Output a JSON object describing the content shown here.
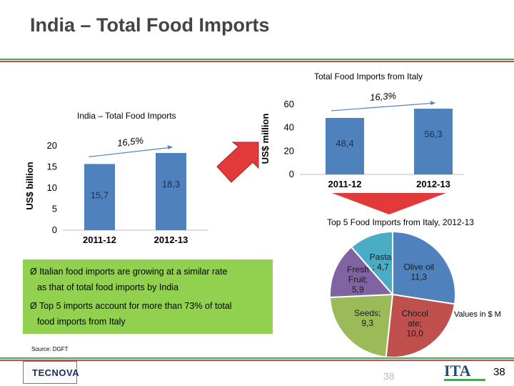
{
  "title": "India – Total Food Imports",
  "colors": {
    "bar": "#4f81bd",
    "green": "#4aa657",
    "red": "#c0504d",
    "bullet_box": "#92d050",
    "arrow": "#e23a3a"
  },
  "chart_data": [
    {
      "type": "bar",
      "title": "India – Total Food Imports",
      "ylabel": "US$ billion",
      "categories": [
        "2011-12",
        "2012-13"
      ],
      "values": [
        15.7,
        18.3
      ],
      "value_labels": [
        "15,7",
        "18,3"
      ],
      "ylim": [
        0,
        20
      ],
      "yticks": [
        "0",
        "5",
        "10",
        "15",
        "20"
      ],
      "growth_label": "16,5%",
      "grid": false
    },
    {
      "type": "bar",
      "title": "Total Food Imports from Italy",
      "ylabel": "US$ million",
      "categories": [
        "2011-12",
        "2012-13"
      ],
      "values": [
        48.4,
        56.3
      ],
      "value_labels": [
        "48,4",
        "56,3"
      ],
      "ylim": [
        0,
        60
      ],
      "yticks": [
        "0",
        "20",
        "40",
        "60"
      ],
      "growth_label": "16,3%",
      "grid": false
    },
    {
      "type": "pie",
      "title": "Top 5 Food Imports from Italy, 2012-13",
      "slices": [
        {
          "label": "Olive oil; 11,3",
          "value": 11.3,
          "color": "#4f81bd"
        },
        {
          "label": "Chocolate; 10,0",
          "label_lines": [
            "Chocol",
            "ate;",
            "10,0"
          ],
          "value": 10.0,
          "color": "#c0504d"
        },
        {
          "label": "Seeds; 9,3",
          "label_lines": [
            "Seeds;",
            "9,3"
          ],
          "value": 9.3,
          "color": "#9bbb59"
        },
        {
          "label": "Fresh Fruit; 5,9",
          "label_lines": [
            "Fresh",
            "Fruit;",
            "5,9"
          ],
          "value": 5.9,
          "color": "#8064a2"
        },
        {
          "label": "Pasta; 4,7",
          "label_lines": [
            "Pasta",
            "; 4,7"
          ],
          "value": 4.7,
          "color": "#4bacc6"
        }
      ]
    }
  ],
  "bullets": [
    {
      "lines": [
        "Italian food imports are growing at a similar rate",
        "as that of total food imports by India"
      ]
    },
    {
      "lines": [
        "Top 5 imports account for more than 73% of total",
        "food imports from Italy"
      ]
    }
  ],
  "bullet_marker": "Ø",
  "source": "Source: DGFT",
  "values_note": "Values in $ M",
  "page_number": "38",
  "ghost_page_number": "38",
  "logos": {
    "tecnova": "TECNOVA",
    "ita": "ITA"
  }
}
